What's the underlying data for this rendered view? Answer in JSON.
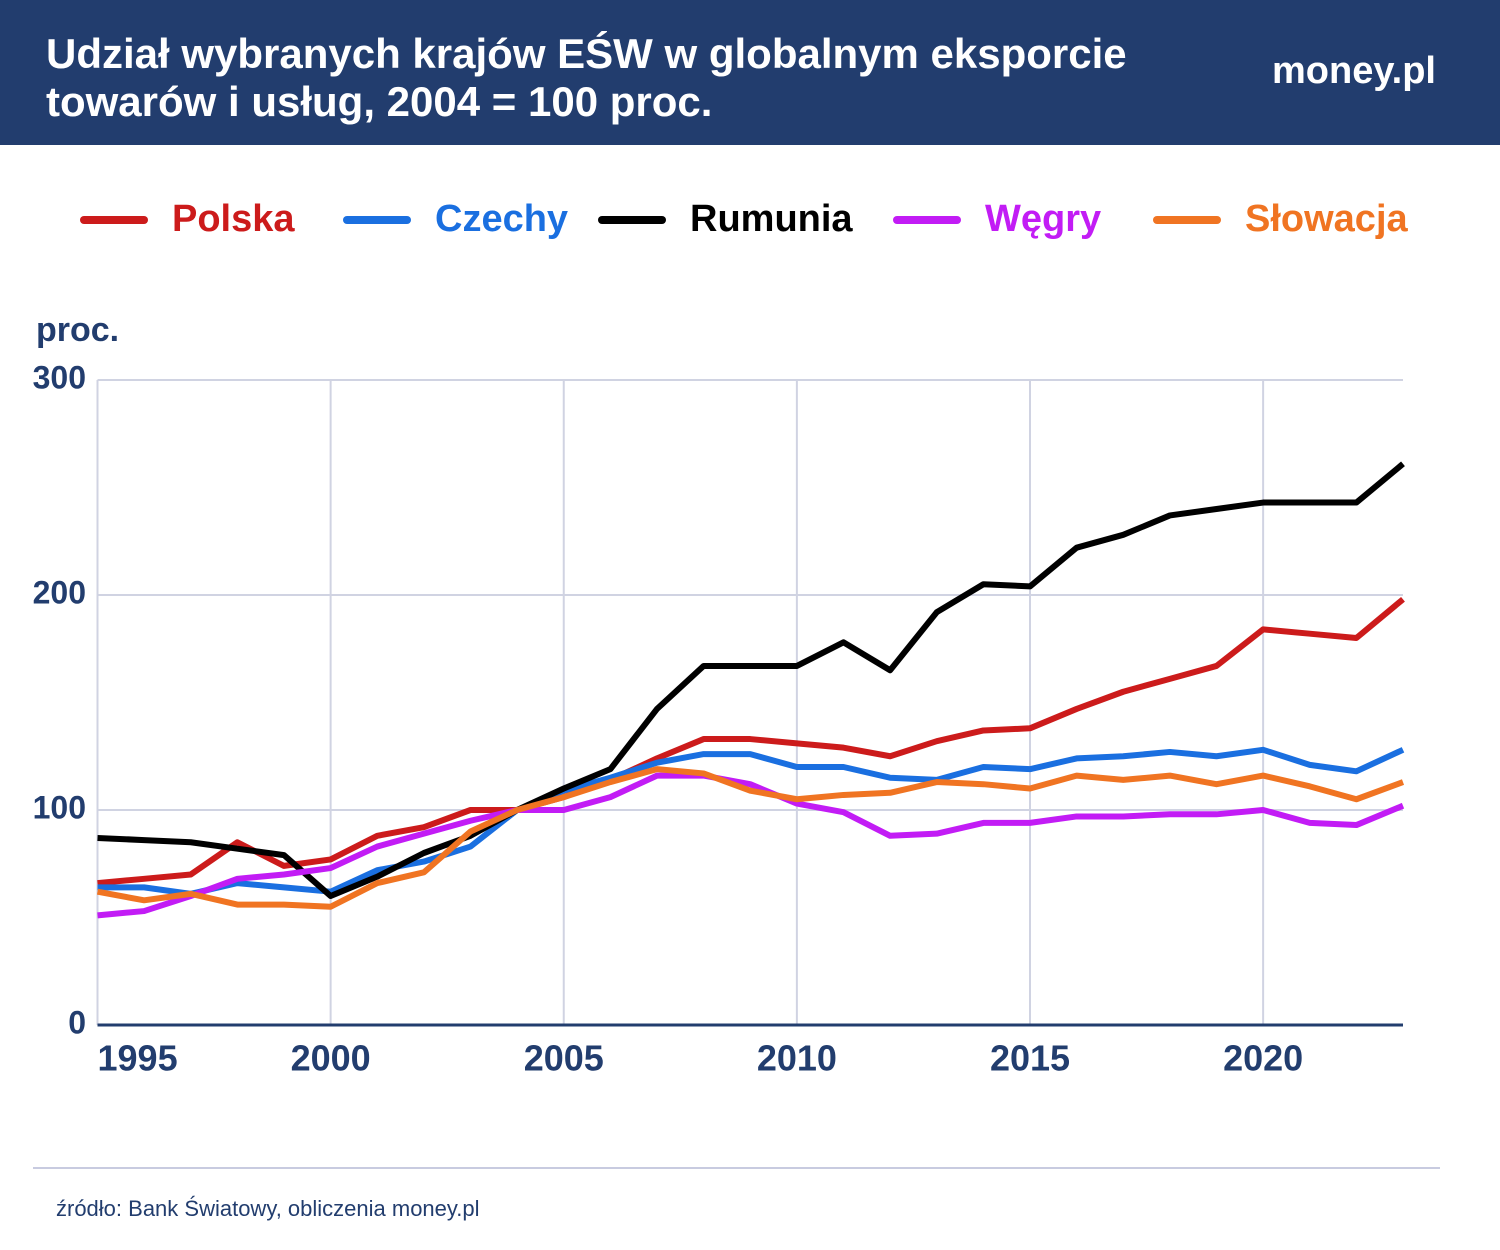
{
  "chart_data": {
    "type": "line",
    "title": "Udział wybranych krajów EŚW w globalnym eksporcie towarów i usług, 2004 = 100 proc.",
    "brand": "money.pl",
    "y_label": "proc.",
    "source": "źródło: Bank Światowy, obliczenia money.pl",
    "legend": "top",
    "grid": true,
    "x": [
      1995,
      1996,
      1997,
      1998,
      1999,
      2000,
      2001,
      2002,
      2003,
      2004,
      2005,
      2006,
      2007,
      2008,
      2009,
      2010,
      2011,
      2012,
      2013,
      2014,
      2015,
      2016,
      2017,
      2018,
      2019,
      2020,
      2021,
      2022,
      2023
    ],
    "xlim": [
      1995,
      2023
    ],
    "xticks": [
      1995,
      2000,
      2005,
      2010,
      2015,
      2020
    ],
    "ylim": [
      0,
      300
    ],
    "yticks": [
      0,
      100,
      200,
      300
    ],
    "series": [
      {
        "name": "Polska",
        "color": "#cc1b1b",
        "values": [
          66,
          68,
          70,
          85,
          74,
          77,
          88,
          92,
          100,
          100,
          106,
          114,
          124,
          133,
          133,
          131,
          129,
          125,
          132,
          137,
          138,
          147,
          155,
          161,
          167,
          184,
          182,
          180,
          198
        ]
      },
      {
        "name": "Czechy",
        "color": "#1a6fe0",
        "values": [
          64,
          64,
          61,
          66,
          64,
          62,
          72,
          76,
          83,
          100,
          109,
          115,
          122,
          126,
          126,
          120,
          120,
          115,
          114,
          120,
          119,
          124,
          125,
          127,
          125,
          128,
          121,
          118,
          128
        ]
      },
      {
        "name": "Rumunia",
        "color": "#000000",
        "values": [
          87,
          86,
          85,
          82,
          79,
          60,
          69,
          80,
          88,
          100,
          110,
          119,
          147,
          167,
          167,
          167,
          178,
          165,
          192,
          205,
          204,
          222,
          228,
          237,
          240,
          243,
          243,
          243,
          261
        ]
      },
      {
        "name": "Węgry",
        "color": "#c21cf5",
        "values": [
          51,
          53,
          60,
          68,
          70,
          73,
          83,
          89,
          95,
          100,
          100,
          106,
          116,
          116,
          112,
          103,
          99,
          88,
          89,
          94,
          94,
          97,
          97,
          98,
          98,
          100,
          94,
          93,
          102
        ]
      },
      {
        "name": "Słowacja",
        "color": "#f07422",
        "values": [
          62,
          58,
          61,
          56,
          56,
          55,
          66,
          71,
          90,
          100,
          106,
          113,
          119,
          117,
          109,
          105,
          107,
          108,
          113,
          112,
          110,
          116,
          114,
          116,
          112,
          116,
          111,
          105,
          113
        ]
      }
    ]
  }
}
